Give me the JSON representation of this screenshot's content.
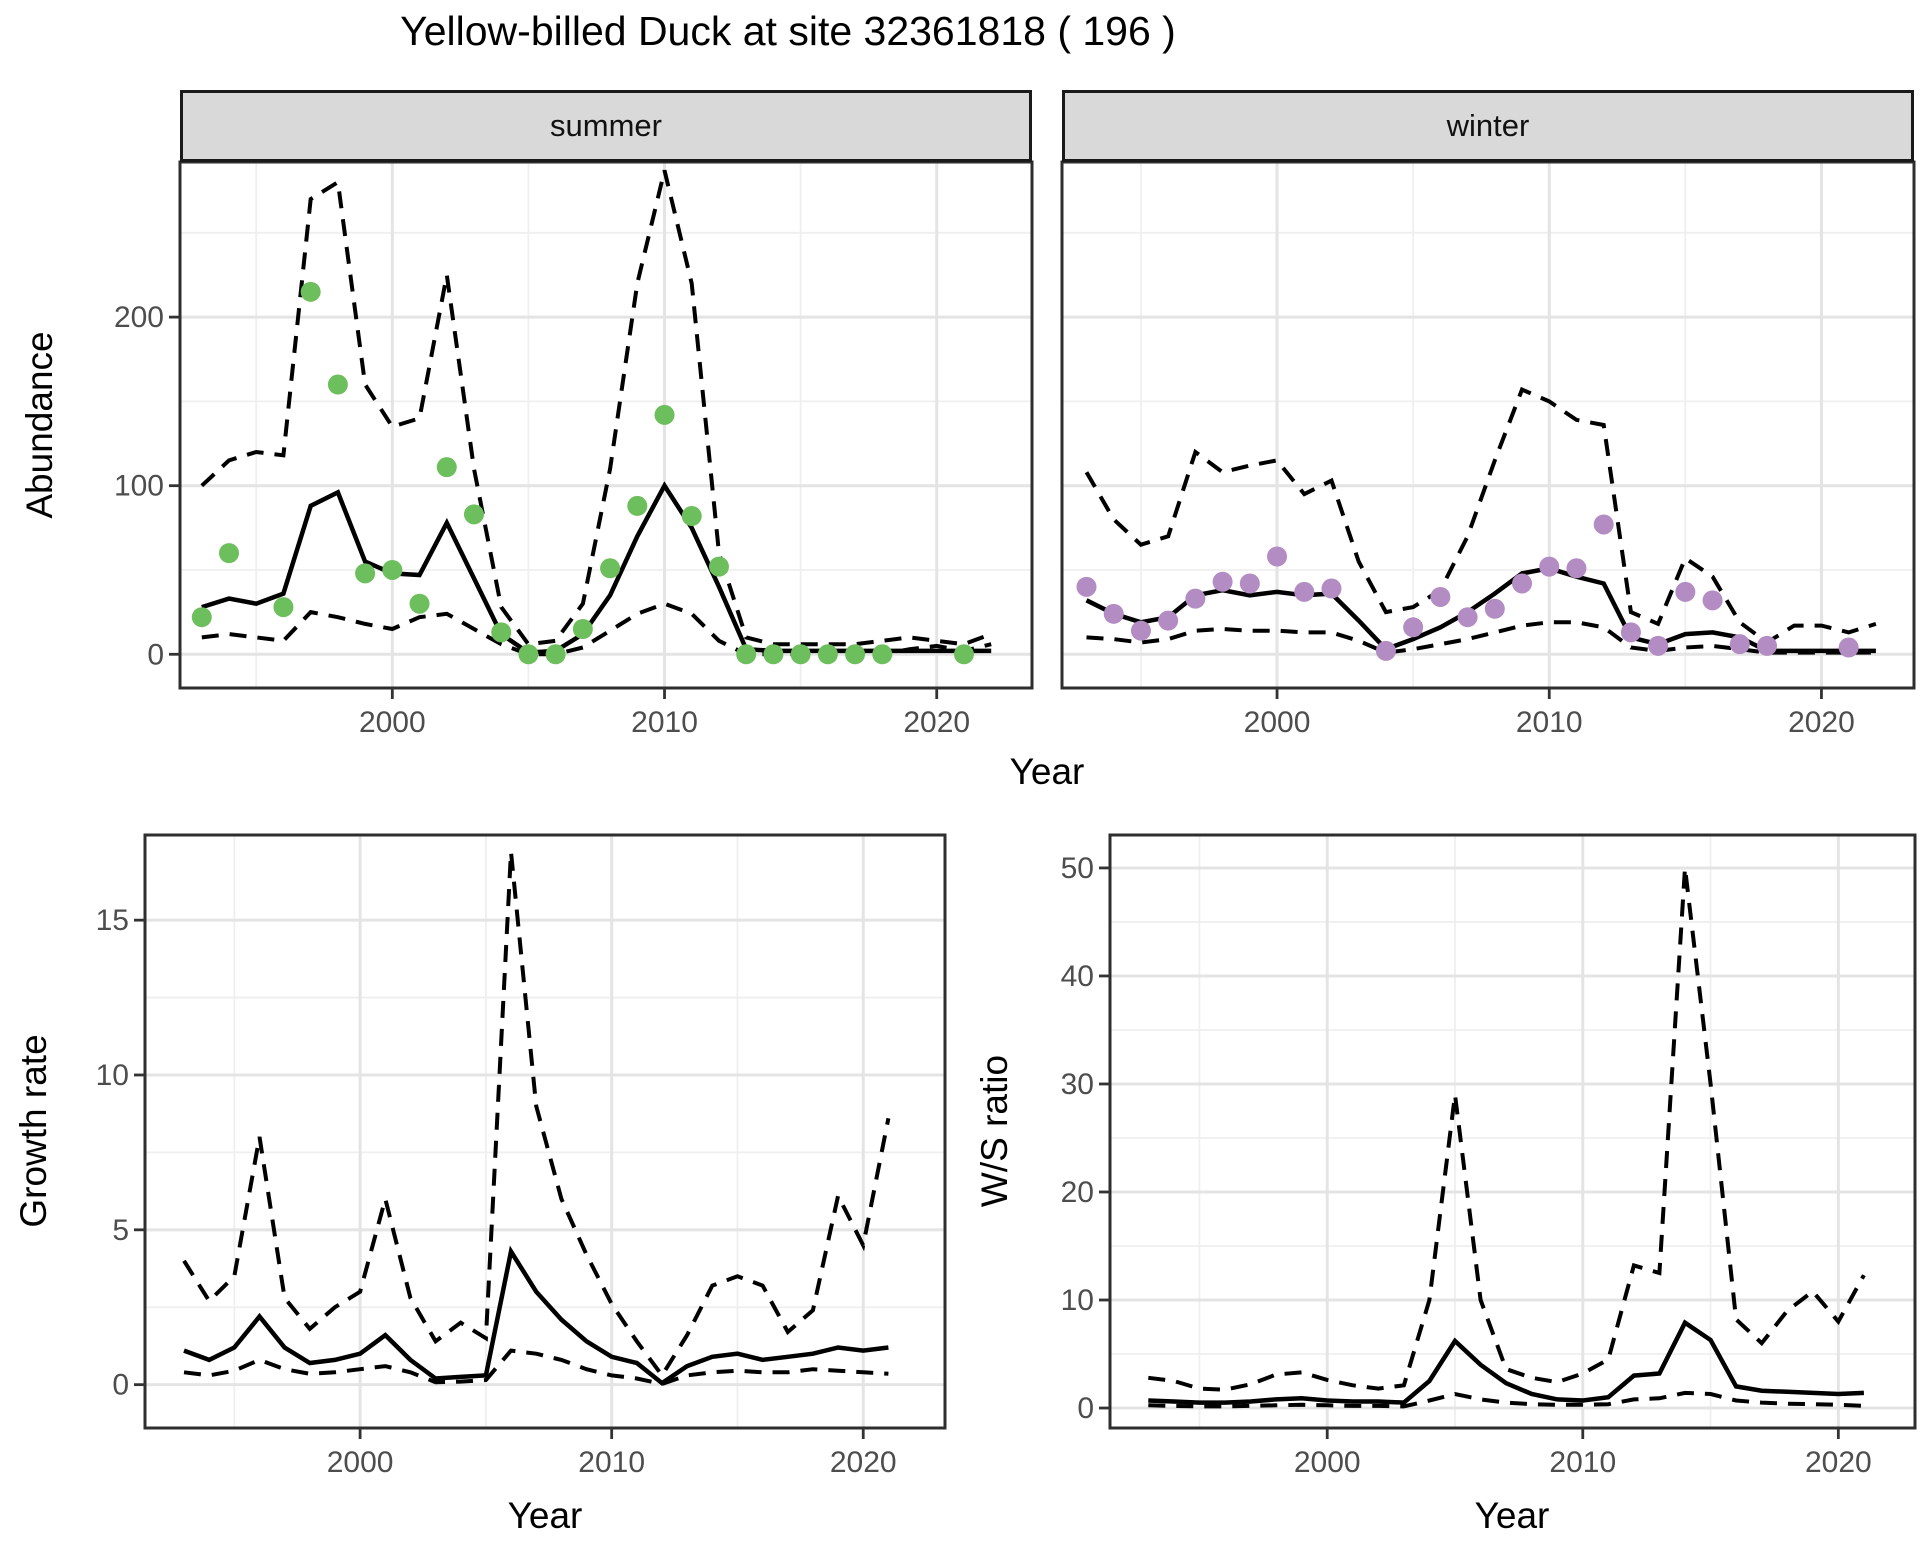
{
  "title": "Yellow-billed Duck at site 32361818 ( 196 )",
  "colors": {
    "summer_point": "#6dbe5c",
    "winter_point": "#b28cc2",
    "line": "#000000",
    "strip_bg": "#d9d9d9",
    "grid_major": "#e4e4e4",
    "grid_minor": "#efefef",
    "tick_label": "#4d4d4d",
    "panel_border": "#2e2e2e"
  },
  "chart_data": [
    {
      "type": "line",
      "panel": "summer",
      "title": "summer",
      "xlabel": "Year",
      "ylabel": "Abundance",
      "xlim": [
        1992.2,
        2023.5
      ],
      "ylim": [
        -20,
        292
      ],
      "x_ticks": [
        2000,
        2010,
        2020
      ],
      "x_minor": [
        1995,
        2005,
        2015
      ],
      "y_ticks": [
        0,
        100,
        200
      ],
      "y_minor": [
        50,
        150,
        250
      ],
      "series": [
        {
          "name": "upper_ci",
          "style": "dashed",
          "x": [
            1993,
            1994,
            1995,
            1996,
            1997,
            1998,
            1999,
            2000,
            2001,
            2002,
            2003,
            2004,
            2005,
            2006,
            2007,
            2008,
            2009,
            2010,
            2011,
            2012,
            2013,
            2014,
            2015,
            2016,
            2017,
            2018,
            2019,
            2020,
            2021,
            2022
          ],
          "y": [
            100,
            115,
            120,
            118,
            270,
            280,
            160,
            135,
            140,
            225,
            110,
            28,
            6,
            8,
            30,
            110,
            220,
            287,
            220,
            60,
            10,
            6,
            6,
            6,
            6,
            8,
            10,
            8,
            6,
            12
          ]
        },
        {
          "name": "lower_ci",
          "style": "dashed",
          "x": [
            1993,
            1994,
            1995,
            1996,
            1997,
            1998,
            1999,
            2000,
            2001,
            2002,
            2003,
            2004,
            2005,
            2006,
            2007,
            2008,
            2009,
            2010,
            2011,
            2012,
            2013,
            2014,
            2015,
            2016,
            2017,
            2018,
            2019,
            2020,
            2021,
            2022
          ],
          "y": [
            10,
            12,
            10,
            8,
            25,
            22,
            18,
            15,
            22,
            24,
            15,
            6,
            0,
            0,
            4,
            14,
            24,
            30,
            24,
            8,
            0,
            0,
            0,
            0,
            0,
            0,
            3,
            5,
            2,
            6
          ]
        },
        {
          "name": "median",
          "style": "solid",
          "x": [
            1993,
            1994,
            1995,
            1996,
            1997,
            1998,
            1999,
            2000,
            2001,
            2002,
            2003,
            2004,
            2005,
            2006,
            2007,
            2008,
            2009,
            2010,
            2011,
            2012,
            2013,
            2014,
            2015,
            2016,
            2017,
            2018,
            2019,
            2020,
            2021,
            2022
          ],
          "y": [
            28,
            33,
            30,
            36,
            88,
            96,
            55,
            48,
            47,
            78,
            45,
            12,
            1,
            2,
            12,
            35,
            70,
            100,
            75,
            40,
            3,
            2,
            2,
            2,
            2,
            2,
            2,
            2,
            2,
            2
          ]
        },
        {
          "name": "observed",
          "style": "points",
          "color": "#6dbe5c",
          "x": [
            1993,
            1994,
            1996,
            1997,
            1998,
            1999,
            2000,
            2001,
            2002,
            2003,
            2004,
            2005,
            2006,
            2007,
            2008,
            2009,
            2010,
            2011,
            2012,
            2013,
            2014,
            2015,
            2016,
            2017,
            2018,
            2021
          ],
          "y": [
            22,
            60,
            28,
            215,
            160,
            48,
            50,
            30,
            111,
            83,
            13,
            0,
            0,
            15,
            51,
            88,
            142,
            82,
            52,
            0,
            0,
            0,
            0,
            0,
            0,
            0
          ]
        }
      ]
    },
    {
      "type": "line",
      "panel": "winter",
      "title": "winter",
      "xlabel": "Year",
      "ylabel": "Abundance",
      "xlim": [
        1992.1,
        2023.4
      ],
      "ylim": [
        -20,
        292
      ],
      "x_ticks": [
        2000,
        2010,
        2020
      ],
      "x_minor": [
        1995,
        2005,
        2015
      ],
      "y_ticks": [
        0,
        100,
        200
      ],
      "y_minor": [
        50,
        150,
        250
      ],
      "series": [
        {
          "name": "upper_ci",
          "style": "dashed",
          "x": [
            1993,
            1994,
            1995,
            1996,
            1997,
            1998,
            1999,
            2000,
            2001,
            2002,
            2003,
            2004,
            2005,
            2006,
            2007,
            2008,
            2009,
            2010,
            2011,
            2012,
            2013,
            2014,
            2015,
            2016,
            2017,
            2018,
            2019,
            2020,
            2021,
            2022
          ],
          "y": [
            108,
            80,
            65,
            70,
            120,
            108,
            112,
            115,
            95,
            103,
            55,
            25,
            28,
            38,
            70,
            115,
            157,
            150,
            139,
            136,
            25,
            18,
            57,
            46,
            19,
            7,
            17,
            17,
            13,
            18
          ]
        },
        {
          "name": "lower_ci",
          "style": "dashed",
          "x": [
            1993,
            1994,
            1995,
            1996,
            1997,
            1998,
            1999,
            2000,
            2001,
            2002,
            2003,
            2004,
            2005,
            2006,
            2007,
            2008,
            2009,
            2010,
            2011,
            2012,
            2013,
            2014,
            2015,
            2016,
            2017,
            2018,
            2019,
            2020,
            2021,
            2022
          ],
          "y": [
            10,
            9,
            7,
            9,
            14,
            15,
            14,
            14,
            13,
            13,
            8,
            1,
            3,
            6,
            9,
            13,
            17,
            19,
            19,
            16,
            4,
            2,
            4,
            5,
            3,
            1,
            1,
            1,
            1,
            1
          ]
        },
        {
          "name": "median",
          "style": "solid",
          "x": [
            1993,
            1994,
            1995,
            1996,
            1997,
            1998,
            1999,
            2000,
            2001,
            2002,
            2003,
            2004,
            2005,
            2006,
            2007,
            2008,
            2009,
            2010,
            2011,
            2012,
            2013,
            2014,
            2015,
            2016,
            2017,
            2018,
            2019,
            2020,
            2021,
            2022
          ],
          "y": [
            32,
            24,
            19,
            22,
            35,
            38,
            35,
            37,
            35,
            36,
            20,
            3,
            9,
            16,
            25,
            36,
            48,
            51,
            46,
            42,
            10,
            6,
            12,
            13,
            10,
            2,
            2,
            2,
            2,
            2
          ]
        },
        {
          "name": "observed",
          "style": "points",
          "color": "#b28cc2",
          "x": [
            1993,
            1994,
            1995,
            1996,
            1997,
            1998,
            1999,
            2000,
            2001,
            2002,
            2004,
            2005,
            2006,
            2007,
            2008,
            2009,
            2010,
            2011,
            2012,
            2013,
            2014,
            2015,
            2016,
            2017,
            2018,
            2021
          ],
          "y": [
            40,
            24,
            14,
            20,
            33,
            43,
            42,
            58,
            37,
            39,
            2,
            16,
            34,
            22,
            27,
            42,
            52,
            51,
            77,
            13,
            5,
            37,
            32,
            6,
            5,
            4
          ]
        }
      ]
    },
    {
      "type": "line",
      "panel": "growth_rate",
      "title": "",
      "xlabel": "Year",
      "ylabel": "Growth rate",
      "xlim": [
        1991.45,
        2023.25
      ],
      "ylim": [
        -1.4,
        17.75
      ],
      "x_ticks": [
        2000,
        2010,
        2020
      ],
      "x_minor": [
        1995,
        2005,
        2015
      ],
      "y_ticks": [
        0,
        5,
        10,
        15
      ],
      "y_minor": [
        2.5,
        7.5,
        12.5
      ],
      "series": [
        {
          "name": "upper_ci",
          "style": "dashed",
          "x": [
            1993,
            1994,
            1995,
            1996,
            1997,
            1998,
            1999,
            2000,
            2001,
            2002,
            2003,
            2004,
            2005,
            2006,
            2007,
            2008,
            2009,
            2010,
            2011,
            2012,
            2013,
            2014,
            2015,
            2016,
            2017,
            2018,
            2019,
            2020,
            2021
          ],
          "y": [
            4.0,
            2.7,
            3.5,
            8.0,
            2.8,
            1.8,
            2.5,
            3.0,
            6.0,
            2.8,
            1.4,
            2.0,
            1.5,
            17.2,
            9.0,
            6.0,
            4.2,
            2.6,
            1.4,
            0.3,
            1.6,
            3.2,
            3.5,
            3.2,
            1.7,
            2.4,
            6.1,
            4.5,
            8.6
          ]
        },
        {
          "name": "lower_ci",
          "style": "dashed",
          "x": [
            1993,
            1994,
            1995,
            1996,
            1997,
            1998,
            1999,
            2000,
            2001,
            2002,
            2003,
            2004,
            2005,
            2006,
            2007,
            2008,
            2009,
            2010,
            2011,
            2012,
            2013,
            2014,
            2015,
            2016,
            2017,
            2018,
            2019,
            2020,
            2021
          ],
          "y": [
            0.4,
            0.3,
            0.45,
            0.8,
            0.5,
            0.35,
            0.4,
            0.5,
            0.6,
            0.4,
            0.08,
            0.1,
            0.15,
            1.1,
            1.0,
            0.8,
            0.5,
            0.3,
            0.2,
            0.02,
            0.3,
            0.4,
            0.45,
            0.4,
            0.4,
            0.5,
            0.45,
            0.4,
            0.35
          ]
        },
        {
          "name": "median",
          "style": "solid",
          "x": [
            1993,
            1994,
            1995,
            1996,
            1997,
            1998,
            1999,
            2000,
            2001,
            2002,
            2003,
            2004,
            2005,
            2006,
            2007,
            2008,
            2009,
            2010,
            2011,
            2012,
            2013,
            2014,
            2015,
            2016,
            2017,
            2018,
            2019,
            2020,
            2021
          ],
          "y": [
            1.1,
            0.8,
            1.2,
            2.2,
            1.2,
            0.7,
            0.8,
            1.0,
            1.6,
            0.8,
            0.2,
            0.25,
            0.3,
            4.3,
            3.0,
            2.1,
            1.4,
            0.9,
            0.7,
            0.05,
            0.6,
            0.9,
            1.0,
            0.8,
            0.9,
            1.0,
            1.2,
            1.1,
            1.2
          ]
        }
      ]
    },
    {
      "type": "line",
      "panel": "ws_ratio",
      "title": "",
      "xlabel": "Year",
      "ylabel": "W/S ratio",
      "xlim": [
        1991.5,
        2023.0
      ],
      "ylim": [
        -1.85,
        53.05
      ],
      "x_ticks": [
        2000,
        2010,
        2020
      ],
      "x_minor": [
        1995,
        2005,
        2015
      ],
      "y_ticks": [
        0,
        10,
        20,
        30,
        40,
        50
      ],
      "y_minor": [
        5,
        15,
        25,
        35,
        45
      ],
      "series": [
        {
          "name": "upper_ci",
          "style": "dashed",
          "x": [
            1993,
            1994,
            1995,
            1996,
            1997,
            1998,
            1999,
            2000,
            2001,
            2002,
            2003,
            2004,
            2005,
            2006,
            2007,
            2008,
            2009,
            2010,
            2011,
            2012,
            2013,
            2014,
            2015,
            2016,
            2017,
            2018,
            2019,
            2020,
            2021
          ],
          "y": [
            2.8,
            2.5,
            1.8,
            1.7,
            2.2,
            3.1,
            3.3,
            2.6,
            2.1,
            1.8,
            2.1,
            10.0,
            29.0,
            10.0,
            3.6,
            2.8,
            2.4,
            3.2,
            4.5,
            13.2,
            12.5,
            50.0,
            30.0,
            8.2,
            6.0,
            9.0,
            10.8,
            8.0,
            12.3
          ]
        },
        {
          "name": "lower_ci",
          "style": "dashed",
          "x": [
            1993,
            1994,
            1995,
            1996,
            1997,
            1998,
            1999,
            2000,
            2001,
            2002,
            2003,
            2004,
            2005,
            2006,
            2007,
            2008,
            2009,
            2010,
            2011,
            2012,
            2013,
            2014,
            2015,
            2016,
            2017,
            2018,
            2019,
            2020,
            2021
          ],
          "y": [
            0.25,
            0.2,
            0.15,
            0.15,
            0.2,
            0.25,
            0.3,
            0.25,
            0.2,
            0.2,
            0.15,
            0.7,
            1.3,
            0.8,
            0.5,
            0.35,
            0.3,
            0.3,
            0.35,
            0.8,
            0.9,
            1.4,
            1.3,
            0.7,
            0.5,
            0.4,
            0.35,
            0.3,
            0.2
          ]
        },
        {
          "name": "median",
          "style": "solid",
          "x": [
            1993,
            1994,
            1995,
            1996,
            1997,
            1998,
            1999,
            2000,
            2001,
            2002,
            2003,
            2004,
            2005,
            2006,
            2007,
            2008,
            2009,
            2010,
            2011,
            2012,
            2013,
            2014,
            2015,
            2016,
            2017,
            2018,
            2019,
            2020,
            2021
          ],
          "y": [
            0.7,
            0.6,
            0.5,
            0.5,
            0.6,
            0.8,
            0.9,
            0.7,
            0.6,
            0.6,
            0.5,
            2.5,
            6.2,
            4.0,
            2.3,
            1.3,
            0.8,
            0.7,
            1.0,
            3.0,
            3.2,
            7.9,
            6.3,
            2.0,
            1.6,
            1.5,
            1.4,
            1.3,
            1.4
          ]
        }
      ]
    }
  ]
}
